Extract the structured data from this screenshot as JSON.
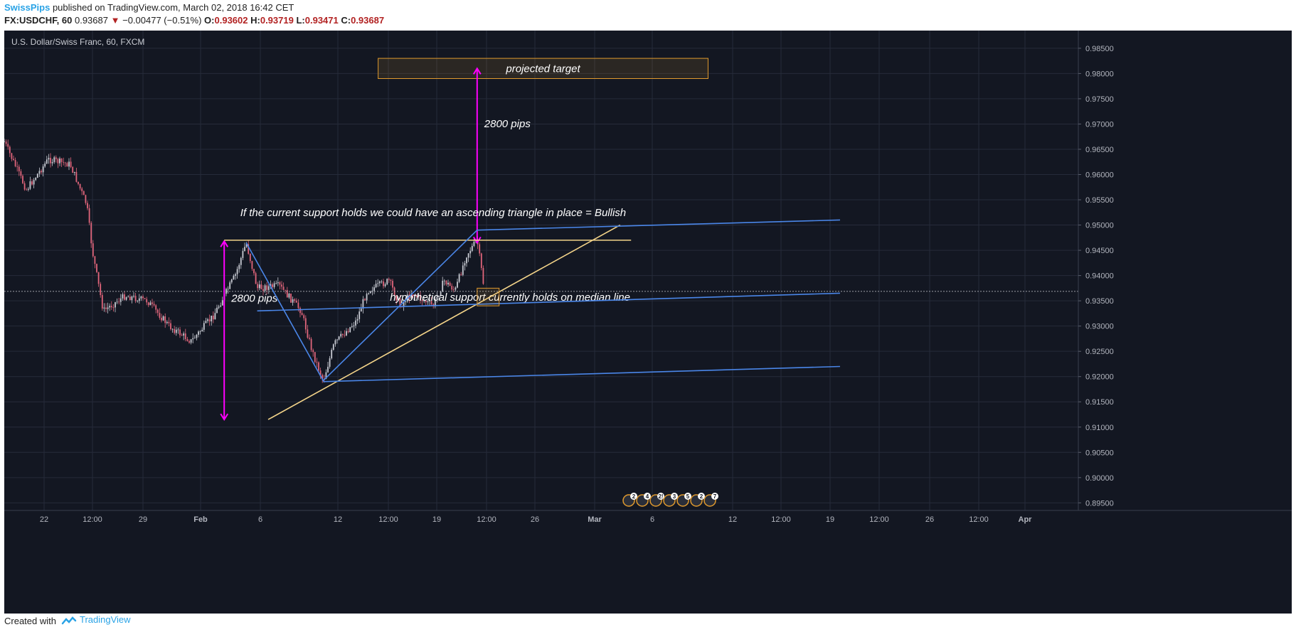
{
  "header": {
    "author": "SwissPips",
    "published_text": "published on TradingView.com, March 02, 2018 16:42 CET",
    "symbol": "FX:USDCHF, 60",
    "last": "0.93687",
    "change": "−0.00477 (−0.51%)",
    "o_label": "O:",
    "o": "0.93602",
    "h_label": "H:",
    "h": "0.93719",
    "l_label": "L:",
    "l": "0.93471",
    "c_label": "C:",
    "c": "0.93687"
  },
  "footer": {
    "created_with": "Created with",
    "brand": "TradingView"
  },
  "colors": {
    "background": "#131722",
    "grid": "#262b3a",
    "candle_up": "#c8cbd3",
    "candle_down": "#e0657b",
    "annotation_blue": "#4a86e8",
    "annotation_yellow": "#f5d58a",
    "annotation_magenta": "#ff00ff",
    "target_box": "#e09a2e"
  },
  "chart_data": {
    "type": "candlestick",
    "title": "U.S. Dollar/Swiss Franc, 60, FXCM",
    "ylim": [
      0.8935,
      0.9885
    ],
    "y_ticks": [
      "0.98500",
      "0.98000",
      "0.97500",
      "0.97000",
      "0.96500",
      "0.96000",
      "0.95500",
      "0.95000",
      "0.94500",
      "0.94000",
      "0.93500",
      "0.93000",
      "0.92500",
      "0.92000",
      "0.91500",
      "0.91000",
      "0.90500",
      "0.90000",
      "0.89500"
    ],
    "x_ticks": [
      "22",
      "12:00",
      "29",
      "Feb",
      "6",
      "12",
      "12:00",
      "19",
      "12:00",
      "26",
      "Mar",
      "6",
      "12",
      "12:00",
      "19",
      "12:00",
      "26",
      "12:00",
      "Apr"
    ],
    "current_price": 0.93687,
    "price_path": [
      {
        "x": "Jan 18",
        "y": 0.9665
      },
      {
        "x": "Jan 20",
        "y": 0.957
      },
      {
        "x": "Jan 22",
        "y": 0.963
      },
      {
        "x": "Jan 24",
        "y": 0.962
      },
      {
        "x": "Jan 25 12:00",
        "y": 0.954
      },
      {
        "x": "Jan 26",
        "y": 0.945
      },
      {
        "x": "Jan 27",
        "y": 0.933
      },
      {
        "x": "Jan 29",
        "y": 0.936
      },
      {
        "x": "Jan 31",
        "y": 0.935
      },
      {
        "x": "Feb 2",
        "y": 0.93
      },
      {
        "x": "Feb 4",
        "y": 0.927
      },
      {
        "x": "Feb 6",
        "y": 0.932
      },
      {
        "x": "Feb 8",
        "y": 0.94
      },
      {
        "x": "Feb 9",
        "y": 0.9465
      },
      {
        "x": "Feb 10",
        "y": 0.9375
      },
      {
        "x": "Feb 12",
        "y": 0.938
      },
      {
        "x": "Feb 13",
        "y": 0.9355
      },
      {
        "x": "Feb 14",
        "y": 0.933
      },
      {
        "x": "Feb 15",
        "y": 0.925
      },
      {
        "x": "Feb 16",
        "y": 0.9192
      },
      {
        "x": "Feb 17",
        "y": 0.9265
      },
      {
        "x": "Feb 19",
        "y": 0.931
      },
      {
        "x": "Feb 20",
        "y": 0.937
      },
      {
        "x": "Feb 22",
        "y": 0.939
      },
      {
        "x": "Feb 23",
        "y": 0.934
      },
      {
        "x": "Feb 24",
        "y": 0.9365
      },
      {
        "x": "Feb 26",
        "y": 0.934
      },
      {
        "x": "Feb 27",
        "y": 0.939
      },
      {
        "x": "Feb 28",
        "y": 0.937
      },
      {
        "x": "Mar 1",
        "y": 0.944
      },
      {
        "x": "Mar 2",
        "y": 0.947
      },
      {
        "x": "Mar 2 08:00",
        "y": 0.942
      },
      {
        "x": "Mar 2 16:00",
        "y": 0.9369
      }
    ],
    "annotations": [
      {
        "kind": "box",
        "label": "projected target",
        "x1": "Feb 21",
        "x2": "Mar 23",
        "y1": 0.983,
        "y2": 0.979
      },
      {
        "kind": "arrow",
        "label": "2800 pips",
        "x": "Mar 2",
        "y1": 0.9465,
        "y2": 0.981
      },
      {
        "kind": "arrow",
        "label": "2800 pips",
        "x": "Feb 7",
        "y1": 0.9468,
        "y2": 0.9115
      },
      {
        "kind": "text",
        "text": "If the current support holds we could have an ascending triangle in place = Bullish",
        "x": "Feb 26",
        "y": 0.9518
      },
      {
        "kind": "text",
        "text": "hypothetical support currently holds on median line",
        "x": "Mar 5",
        "y": 0.935
      },
      {
        "kind": "hline",
        "color": "yellow",
        "x1": "Feb 7",
        "x2": "Mar 16",
        "y": 0.947
      },
      {
        "kind": "trendline",
        "color": "yellow",
        "x1": "Feb 11",
        "y1": 0.9115,
        "x2": "Mar 15",
        "y2": 0.95
      },
      {
        "kind": "pitchfork_upper",
        "color": "blue",
        "x1": "Mar 2",
        "y1": 0.949,
        "x2": "Apr 4",
        "y2": 0.951
      },
      {
        "kind": "pitchfork_median",
        "color": "blue",
        "x1": "Feb 10",
        "y1": 0.933,
        "x2": "Apr 4",
        "y2": 0.9365
      },
      {
        "kind": "pitchfork_lower",
        "color": "blue",
        "x1": "Feb 16",
        "y1": 0.919,
        "x2": "Apr 4",
        "y2": 0.922
      },
      {
        "kind": "leg",
        "color": "blue",
        "points": [
          [
            "Feb 9",
            0.9465
          ],
          [
            "Feb 16",
            0.9192
          ],
          [
            "Mar 2",
            0.949
          ]
        ]
      },
      {
        "kind": "box",
        "label": "",
        "x1": "Mar 2",
        "x2": "Mar 4",
        "y1": 0.9375,
        "y2": 0.934
      }
    ],
    "events": [
      {
        "label": "2"
      },
      {
        "label": "4"
      },
      {
        "label": "2!"
      },
      {
        "label": "3"
      },
      {
        "label": "5"
      },
      {
        "label": "2"
      },
      {
        "label": "7"
      }
    ]
  }
}
